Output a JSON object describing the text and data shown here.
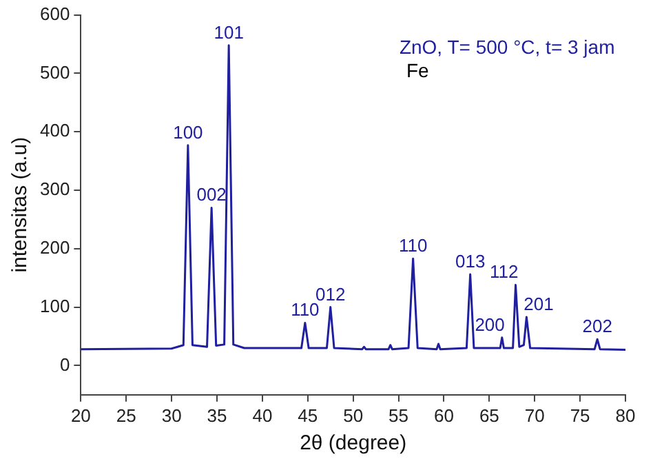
{
  "chart_data": {
    "type": "line",
    "xlabel": "2θ (degree)",
    "ylabel": "intensitas (a.u)",
    "xlim": [
      20,
      80
    ],
    "xticks": [
      20,
      25,
      30,
      35,
      40,
      45,
      50,
      55,
      60,
      65,
      70,
      75,
      80
    ],
    "ylim": [
      -50,
      600
    ],
    "yticks": [
      0,
      100,
      200,
      300,
      400,
      500,
      600
    ],
    "grid": false,
    "legend": false,
    "marker": "none",
    "line_style": "solid",
    "series": [
      {
        "color": "#1f1f9f",
        "x": [
          20,
          30,
          31.3,
          31.8,
          32.3,
          33.9,
          34.4,
          34.9,
          35.8,
          36.3,
          36.8,
          38,
          44.3,
          44.7,
          45.1,
          47.1,
          47.5,
          47.9,
          51,
          51.2,
          51.4,
          53.9,
          54.1,
          54.3,
          56.1,
          56.6,
          57.1,
          59.2,
          59.4,
          59.6,
          62.5,
          62.9,
          63.3,
          66.2,
          66.4,
          66.6,
          67.6,
          67.9,
          68.3,
          68.8,
          69.1,
          69.5,
          76.6,
          76.9,
          77.2,
          80
        ],
        "values": [
          28,
          29,
          35,
          377,
          35,
          32,
          270,
          34,
          36,
          548,
          36,
          30,
          30,
          73,
          30,
          30,
          100,
          30,
          28,
          32,
          28,
          28,
          35,
          28,
          30,
          183,
          30,
          28,
          37,
          28,
          30,
          156,
          30,
          30,
          48,
          30,
          30,
          138,
          32,
          35,
          83,
          30,
          28,
          45,
          28,
          27
        ]
      }
    ],
    "annotations": [
      "ZnO, T= 500 °C, t= 3 jam",
      "Fe",
      {
        "text": "100",
        "x": 31.8,
        "y": 377
      },
      {
        "text": "002",
        "x": 34.4,
        "y": 270
      },
      {
        "text": "101",
        "x": 36.3,
        "y": 548
      },
      {
        "text": "110",
        "x": 44.7,
        "y": 73
      },
      {
        "text": "012",
        "x": 47.5,
        "y": 100
      },
      {
        "text": "110",
        "x": 56.6,
        "y": 183
      },
      {
        "text": "013",
        "x": 62.9,
        "y": 156
      },
      {
        "text": "200",
        "x": 66.4,
        "y": 48
      },
      {
        "text": "112",
        "x": 67.9,
        "y": 138
      },
      {
        "text": "201",
        "x": 69.1,
        "y": 83
      },
      {
        "text": "202",
        "x": 76.9,
        "y": 45
      }
    ]
  }
}
